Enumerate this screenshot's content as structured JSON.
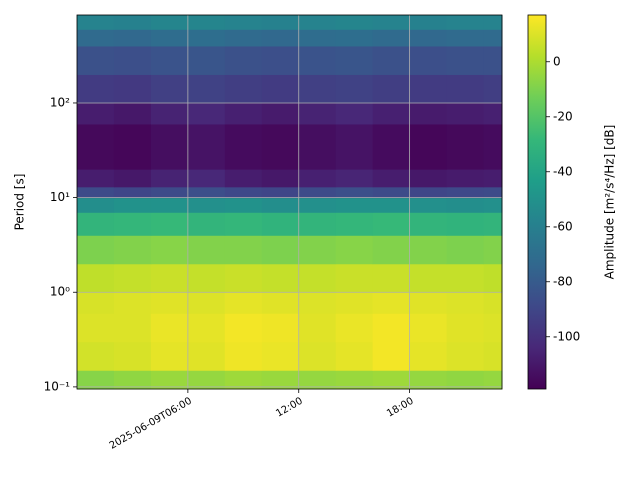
{
  "chart_data": {
    "type": "heatmap",
    "y_label": "Period [s]",
    "colorbar_label": "Amplitude [m²/s⁴/Hz] [dB]",
    "colormap": "viridis",
    "log_y": true,
    "grid": true,
    "x": [
      "2025-06-09T00:00",
      "2025-06-09T02:00",
      "2025-06-09T04:00",
      "2025-06-09T06:00",
      "2025-06-09T08:00",
      "2025-06-09T10:00",
      "2025-06-09T12:00",
      "2025-06-09T14:00",
      "2025-06-09T16:00",
      "2025-06-09T18:00",
      "2025-06-09T20:00",
      "2025-06-09T22:00"
    ],
    "xlim": [
      "2025-06-09T00:00",
      "2025-06-09T23:00"
    ],
    "xticks": [
      "2025-06-09T06:00",
      {
        "value": "2025-06-09T12:00",
        "label": "12:00"
      },
      {
        "value": "2025-06-09T18:00",
        "label": "18:00"
      }
    ],
    "y_bins": [
      0.095,
      0.15,
      0.3,
      0.6,
      1,
      2,
      4,
      7,
      10,
      13,
      20,
      60,
      100,
      200,
      400,
      600,
      850
    ],
    "ylim": [
      0.095,
      850
    ],
    "yticks": [
      {
        "value": 0.1,
        "label": "10⁻¹"
      },
      {
        "value": 1,
        "label": "10⁰"
      },
      {
        "value": 10,
        "label": "10¹"
      },
      {
        "value": 100,
        "label": "10²"
      }
    ],
    "zlim": [
      -119,
      17
    ],
    "zticks": [
      0,
      -20,
      -40,
      -60,
      -80,
      -100
    ],
    "z": [
      [
        -8,
        -6,
        -4,
        -5,
        -3,
        -4,
        -5,
        -4,
        -3,
        -5,
        -6,
        -5
      ],
      [
        8,
        9,
        12,
        11,
        14,
        13,
        10,
        12,
        15,
        12,
        10,
        9
      ],
      [
        10,
        10,
        13,
        12,
        15,
        14,
        11,
        13,
        15,
        13,
        11,
        10
      ],
      [
        9,
        10,
        11,
        10,
        12,
        11,
        10,
        11,
        12,
        11,
        10,
        9
      ],
      [
        4,
        5,
        6,
        5,
        6,
        5,
        5,
        6,
        6,
        5,
        5,
        4
      ],
      [
        -10,
        -9,
        -8,
        -9,
        -9,
        -10,
        -9,
        -8,
        -9,
        -9,
        -10,
        -9
      ],
      [
        -30,
        -29,
        -28,
        -30,
        -29,
        -31,
        -30,
        -29,
        -28,
        -30,
        -31,
        -30
      ],
      [
        -52,
        -50,
        -50,
        -51,
        -50,
        -52,
        -51,
        -50,
        -50,
        -51,
        -52,
        -51
      ],
      [
        -88,
        -90,
        -88,
        -86,
        -89,
        -90,
        -88,
        -86,
        -88,
        -90,
        -89,
        -88
      ],
      [
        -108,
        -110,
        -106,
        -104,
        -108,
        -110,
        -107,
        -105,
        -108,
        -110,
        -109,
        -108
      ],
      [
        -116,
        -117,
        -114,
        -112,
        -115,
        -116,
        -114,
        -112,
        -115,
        -117,
        -116,
        -115
      ],
      [
        -108,
        -110,
        -106,
        -104,
        -107,
        -109,
        -106,
        -104,
        -107,
        -109,
        -108,
        -107
      ],
      [
        -95,
        -96,
        -93,
        -92,
        -94,
        -95,
        -93,
        -92,
        -94,
        -95,
        -95,
        -94
      ],
      [
        -85,
        -86,
        -84,
        -83,
        -85,
        -86,
        -84,
        -83,
        -85,
        -86,
        -85,
        -85
      ],
      [
        -72,
        -73,
        -71,
        -70,
        -72,
        -73,
        -71,
        -70,
        -72,
        -73,
        -72,
        -72
      ],
      [
        -58,
        -59,
        -57,
        -57,
        -58,
        -59,
        -58,
        -57,
        -58,
        -59,
        -58,
        -58
      ]
    ]
  }
}
